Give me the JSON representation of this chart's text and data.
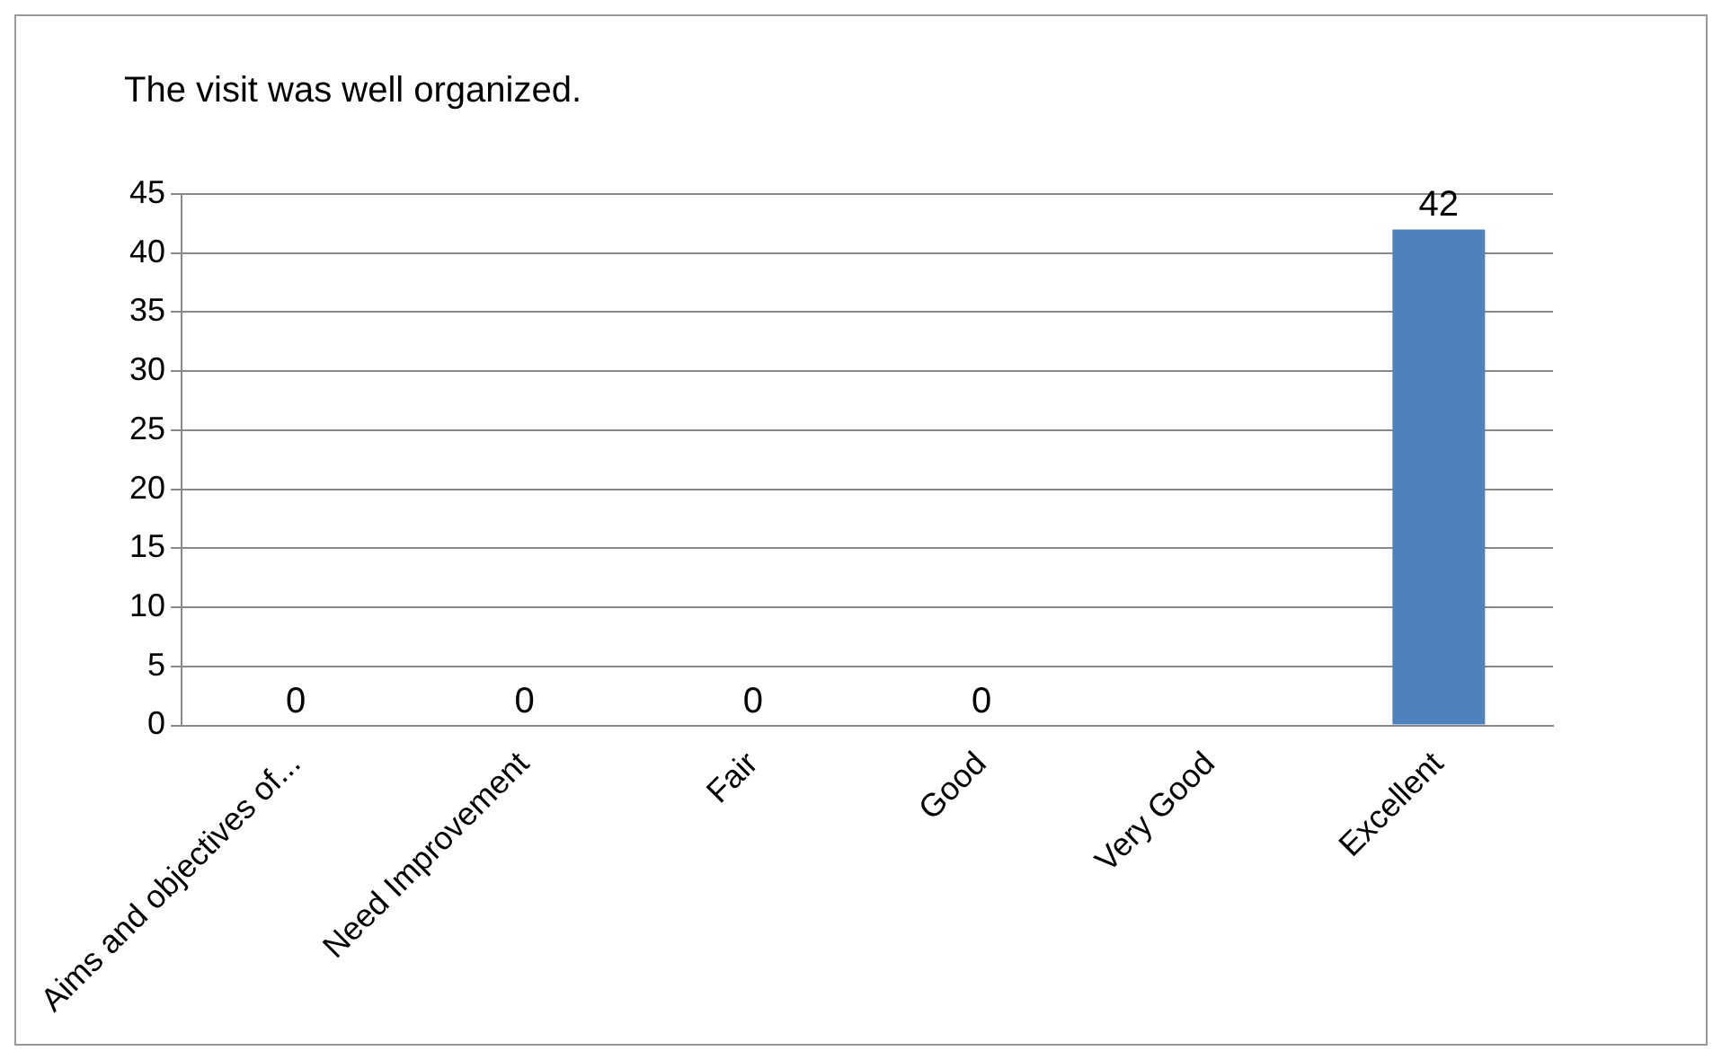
{
  "chart_data": {
    "type": "bar",
    "title": "The visit was well organized.",
    "categories": [
      "Aims and objectives of...",
      "Need Improvement",
      "Fair",
      "Good",
      "Very Good",
      "Excellent"
    ],
    "values": [
      0,
      0,
      0,
      0,
      0,
      42
    ],
    "value_labels": [
      "0",
      "0",
      "0",
      "0",
      null,
      "42"
    ],
    "color": "#4f81bd",
    "ylim": [
      0,
      45
    ],
    "yticks": [
      0,
      5,
      10,
      15,
      20,
      25,
      30,
      35,
      40,
      45
    ],
    "grid": "y",
    "legend": false
  }
}
